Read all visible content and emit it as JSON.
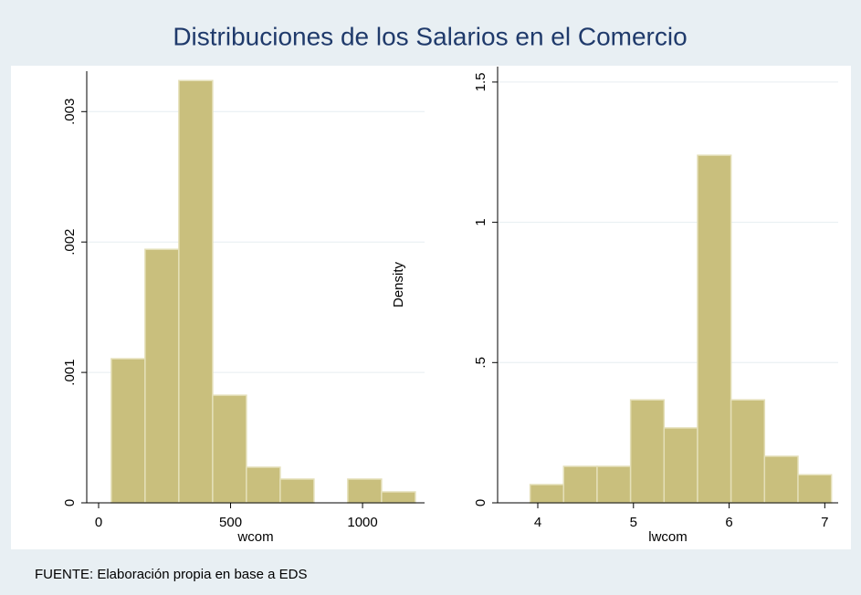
{
  "title": "Distribuciones de los Salarios en el Comercio",
  "source": "FUENTE: Elaboración propia en base a EDS",
  "chart_data": [
    {
      "type": "histogram",
      "x_label": "wcom",
      "color": "#c9bf7d",
      "bins": [
        48,
        176,
        304,
        432,
        560,
        688,
        816,
        944,
        1072,
        1200
      ],
      "values": [
        0.001105,
        0.001944,
        0.003238,
        0.000825,
        0.000273,
        0.000182,
        0,
        0.000182,
        8.4e-05
      ],
      "xlim": [
        -45,
        1235
      ],
      "ylim": [
        0,
        0.00331
      ],
      "xticks": [
        0,
        500,
        1000
      ],
      "yticks": [
        0,
        {
          "value": 0.001,
          "label": ".001"
        },
        {
          "value": 0.002,
          "label": ".002"
        },
        {
          "value": 0.003,
          "label": ".003"
        }
      ],
      "grid": true
    },
    {
      "type": "histogram",
      "x_label": "lwcom",
      "y_label": "Density",
      "color": "#c9bf7d",
      "bins": [
        3.92,
        4.27,
        4.62,
        4.97,
        5.32,
        5.67,
        6.02,
        6.37,
        6.72,
        7.07
      ],
      "values": [
        0.065,
        0.13,
        0.13,
        0.367,
        0.267,
        1.239,
        0.367,
        0.166,
        0.1
      ],
      "xlim": [
        3.58,
        7.14
      ],
      "ylim": [
        0,
        1.555
      ],
      "xticks": [
        4,
        5,
        6,
        7
      ],
      "yticks": [
        0,
        {
          "value": 0.5,
          "label": ".5"
        },
        1,
        1.5
      ],
      "grid": true
    }
  ]
}
